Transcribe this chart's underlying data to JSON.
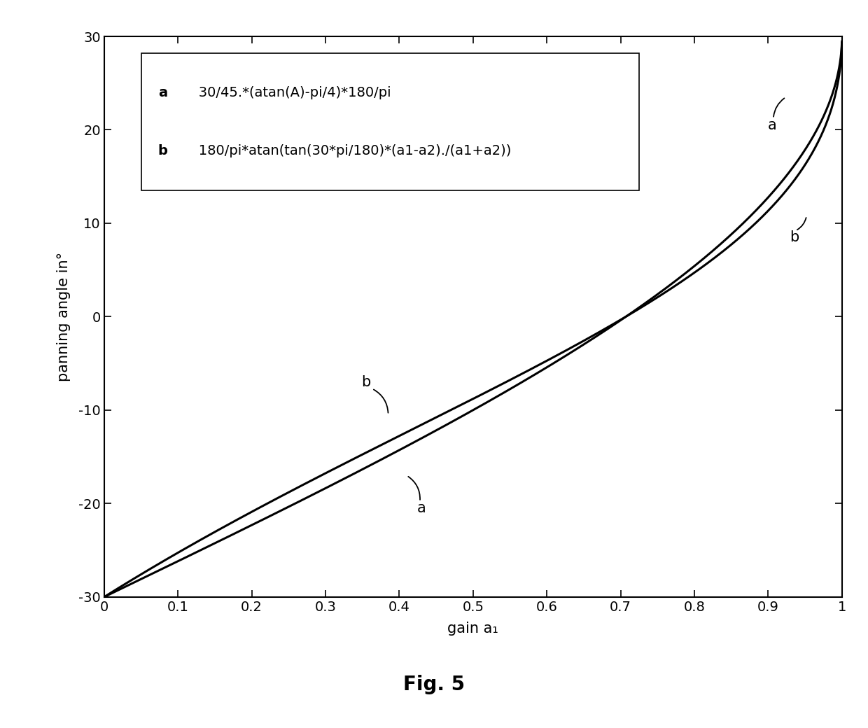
{
  "xlabel": "gain a₁",
  "ylabel": "panning angle in°",
  "xlim": [
    0,
    1
  ],
  "ylim": [
    -30,
    30
  ],
  "xticks": [
    0,
    0.1,
    0.2,
    0.3,
    0.4,
    0.5,
    0.6,
    0.7,
    0.8,
    0.9,
    1.0
  ],
  "yticks": [
    -30,
    -20,
    -10,
    0,
    10,
    20,
    30
  ],
  "legend_a_label": "a",
  "legend_a_text": "   30/45.*(atan(A)-pi/4)*180/pi",
  "legend_b_label": "b",
  "legend_b_text": "   180/pi*atan(tan(30*pi/180)*(a1-a2)./(a1+a2))",
  "line_color": "#000000",
  "line_width": 2.2,
  "background_color": "#ffffff",
  "fig_title": "Fig. 5",
  "fig_title_fontsize": 20,
  "axis_label_fontsize": 15,
  "tick_fontsize": 14,
  "legend_fontsize": 14,
  "annot_fontsize": 15
}
